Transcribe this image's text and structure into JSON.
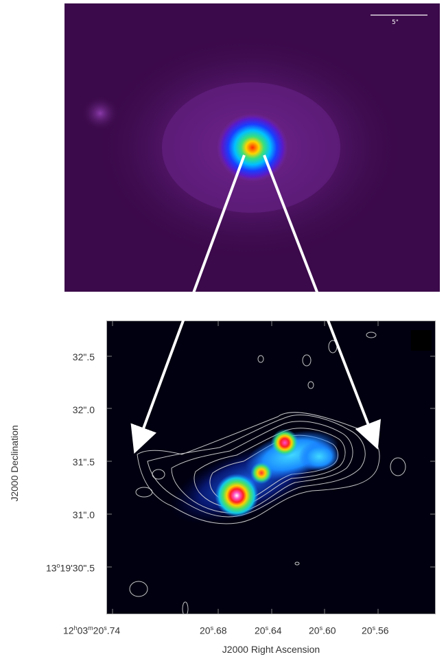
{
  "top_image": {
    "scale_bar_label": "5\""
  },
  "bottom_image": {
    "y_axis_title": "J2000 Declination",
    "x_axis_title": "J2000 Right Ascension",
    "y_ticks": [
      {
        "deg": "",
        "min": "",
        "sec": "32\".5"
      },
      {
        "deg": "",
        "min": "",
        "sec": "32\".0"
      },
      {
        "deg": "",
        "min": "",
        "sec": "31\".5"
      },
      {
        "deg": "",
        "min": "",
        "sec": "31\".0"
      },
      {
        "deg": "13",
        "min": "19'",
        "sec": "30\".5"
      }
    ],
    "x_ticks": [
      {
        "prefix": "12",
        "h": "h",
        "mid": "03",
        "m": "m",
        "pre_s": "20",
        "s": "s",
        "frac": ".74"
      },
      {
        "prefix": "",
        "h": "",
        "mid": "",
        "m": "",
        "pre_s": "20",
        "s": "s",
        "frac": ".68"
      },
      {
        "prefix": "",
        "h": "",
        "mid": "",
        "m": "",
        "pre_s": "20",
        "s": "s",
        "frac": ".64"
      },
      {
        "prefix": "",
        "h": "",
        "mid": "",
        "m": "",
        "pre_s": "20",
        "s": "s",
        "frac": ".60"
      },
      {
        "prefix": "",
        "h": "",
        "mid": "",
        "m": "",
        "pre_s": "20",
        "s": "s",
        "frac": ".56"
      }
    ]
  },
  "colors": {
    "top_background": "#3b0a4a",
    "bottom_background": "#000010",
    "contour": "#dddddd",
    "arrow": "#ffffff"
  }
}
